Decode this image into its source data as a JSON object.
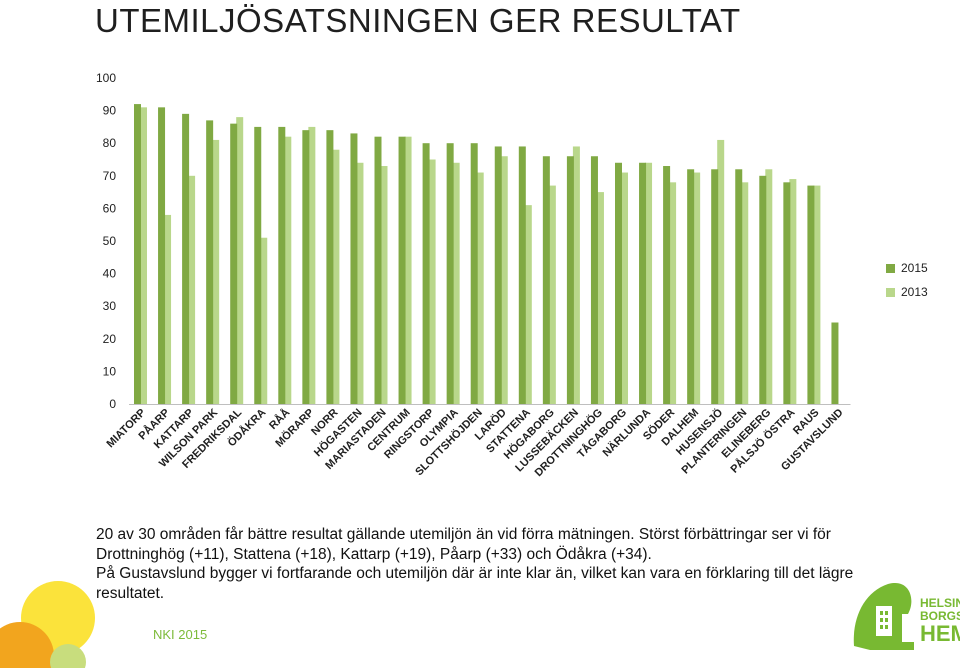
{
  "page": {
    "title": "UTEMILJÖSATSNINGEN GER RESULTAT",
    "summary": [
      "20 av 30 områden får bättre resultat gällande utemiljön än vid förra mätningen. Störst förbättringar ser vi för Drottninghög (+11), Stattena (+18), Kattarp (+19), Påarp (+33) och Ödåkra (+34).",
      "På Gustavslund bygger vi fortfarande och utemiljön där är inte klar än, vilket kan vara en förklaring till det lägre resultatet."
    ],
    "footer": "NKI 2015",
    "logo": {
      "line1": "HELSING",
      "line2": "BORGS",
      "line3": "HEM",
      "icon": "house-tree-logo-icon"
    }
  },
  "colors": {
    "series_2015": "#80a943",
    "series_2013": "#b9d78b",
    "footer": "#7dbb3a",
    "logo": "#78b932"
  },
  "chart_data": {
    "type": "bar",
    "ylim": [
      0,
      100
    ],
    "yticks": [
      0,
      10,
      20,
      30,
      40,
      50,
      60,
      70,
      80,
      90,
      100
    ],
    "grid": false,
    "legend": "right",
    "categories": [
      "MIATORP",
      "PÅARP",
      "KATTARP",
      "WILSON PARK",
      "FREDRIKSDAL",
      "ÖDÅKRA",
      "RÅÅ",
      "MÖRARP",
      "NORR",
      "HÖGASTEN",
      "MARIASTADEN",
      "CENTRUM",
      "RINGSTORP",
      "OLYMPIA",
      "SLOTTSHÖJDEN",
      "LARÖD",
      "STATTENA",
      "HÖGABORG",
      "LUSSEBÄCKEN",
      "DROTTNINGHÖG",
      "TÅGABORG",
      "NÄRLUNDA",
      "SÖDER",
      "DALHEM",
      "HUSENSJÖ",
      "PLANTERINGEN",
      "ELINEBERG",
      "PÅLSJÖ ÖSTRA",
      "RAUS",
      "GUSTAVSLUND"
    ],
    "series": [
      {
        "name": "2015",
        "values": [
          92,
          91,
          89,
          87,
          86,
          85,
          85,
          84,
          84,
          83,
          82,
          82,
          80,
          80,
          80,
          79,
          79,
          76,
          76,
          76,
          74,
          74,
          73,
          72,
          72,
          72,
          70,
          68,
          67,
          25
        ]
      },
      {
        "name": "2013",
        "values": [
          91,
          58,
          70,
          81,
          88,
          51,
          82,
          85,
          78,
          74,
          73,
          82,
          75,
          74,
          71,
          76,
          61,
          67,
          79,
          65,
          71,
          74,
          68,
          71,
          81,
          68,
          72,
          69,
          67,
          null
        ]
      }
    ]
  }
}
